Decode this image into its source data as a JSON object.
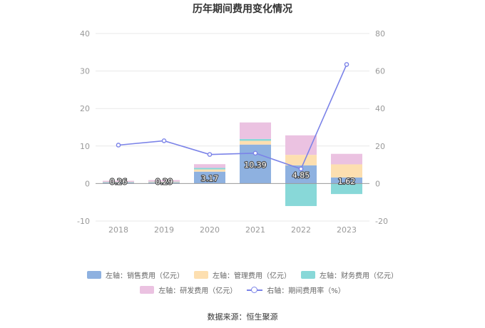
{
  "chart_data": {
    "type": "bar",
    "title": "历年期间费用变化情况",
    "categories": [
      "2018",
      "2019",
      "2020",
      "2021",
      "2022",
      "2023"
    ],
    "left_axis": {
      "min": -10,
      "max": 40,
      "ticks": [
        -10,
        0,
        10,
        20,
        30,
        40
      ]
    },
    "right_axis": {
      "min": -20,
      "max": 80,
      "ticks": [
        -20,
        0,
        20,
        40,
        60,
        80
      ]
    },
    "series": [
      {
        "name": "左轴：销售费用（亿元）",
        "color": "#8eb1e0",
        "values": [
          0.26,
          0.29,
          3.17,
          10.39,
          4.85,
          1.62
        ],
        "labels": [
          "0.26",
          "0.29",
          "3.17",
          "10.39",
          "4.85",
          "1.62"
        ]
      },
      {
        "name": "左轴：管理费用（亿元）",
        "color": "#fddfb0",
        "values": [
          0.15,
          0.2,
          0.6,
          1.0,
          2.8,
          3.5
        ]
      },
      {
        "name": "左轴：财务费用（亿元）",
        "color": "#88d8d8",
        "values": [
          0.02,
          0.02,
          0.4,
          0.5,
          -6.0,
          -2.8
        ]
      },
      {
        "name": "左轴：研发费用（亿元）",
        "color": "#ebc2e1",
        "values": [
          0.3,
          0.4,
          1.0,
          4.4,
          5.2,
          2.8
        ]
      }
    ],
    "line": {
      "name": "右轴：期间费用率（%）",
      "color": "#7b83e8",
      "values": [
        20.5,
        22.8,
        15.5,
        16.2,
        7.8,
        63.5
      ]
    }
  },
  "source": "数据来源：恒生聚源"
}
